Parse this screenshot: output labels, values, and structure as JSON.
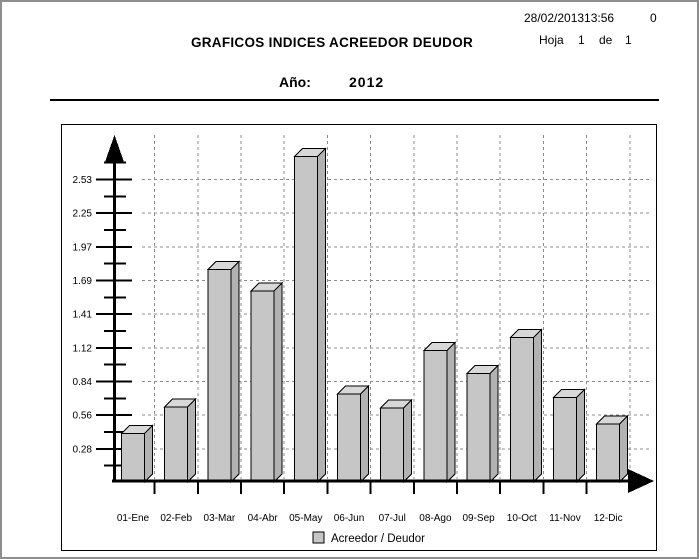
{
  "header": {
    "datetime": "28/02/201313:56",
    "counter": "0",
    "sheet": {
      "label": "Hoja",
      "page": "1",
      "of_label": "de",
      "total": "1"
    },
    "title": "GRAFICOS INDICES ACREEDOR DEUDOR",
    "year_label": "Año:",
    "year_value": "2012"
  },
  "chart_data": {
    "type": "bar",
    "title": "",
    "categories": [
      "01-Ene",
      "02-Feb",
      "03-Mar",
      "04-Abr",
      "05-May",
      "06-Jun",
      "07-Jul",
      "08-Ago",
      "09-Sep",
      "10-Oct",
      "11-Nov",
      "12-Dic"
    ],
    "values": [
      0.41,
      0.63,
      1.78,
      1.6,
      2.72,
      0.74,
      0.62,
      1.1,
      0.91,
      1.21,
      0.71,
      0.49
    ],
    "series_name": "Acreedor / Deudor",
    "xlabel": "",
    "ylabel": "",
    "y_tick_labels": [
      "0.28",
      "0.56",
      "0.84",
      "1.12",
      "1.41",
      "1.69",
      "1.97",
      "2.25",
      "2.53"
    ],
    "y_major_step": 0.281,
    "ylim": [
      0,
      2.81
    ],
    "grid": "dashed",
    "legend_position": "bottom",
    "colors": {
      "bar_front": "#c6c6c6",
      "bar_top": "#d8d8d8",
      "bar_side": "#b2b2b2",
      "grid_line": "#8c8c8c",
      "axis": "#000000"
    }
  }
}
